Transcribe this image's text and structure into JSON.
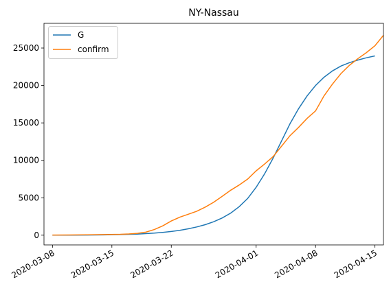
{
  "chart_data": {
    "type": "line",
    "title": "NY-Nassau",
    "xlabel": "",
    "ylabel": "",
    "x_ticks": [
      "2020-03-08",
      "2020-03-15",
      "2020-03-22",
      "2020-04-01",
      "2020-04-08",
      "2020-04-15"
    ],
    "y_ticks": [
      0,
      5000,
      10000,
      15000,
      20000,
      25000
    ],
    "xlim": [
      "2020-03-07",
      "2020-04-16"
    ],
    "ylim": [
      -1300,
      28300
    ],
    "grid": false,
    "legend": "top-left",
    "series": [
      {
        "name": "G",
        "color": "#1f77b4",
        "points": [
          [
            "2020-03-08",
            5
          ],
          [
            "2020-03-10",
            10
          ],
          [
            "2020-03-12",
            20
          ],
          [
            "2020-03-14",
            40
          ],
          [
            "2020-03-16",
            80
          ],
          [
            "2020-03-18",
            150
          ],
          [
            "2020-03-20",
            280
          ],
          [
            "2020-03-21",
            380
          ],
          [
            "2020-03-22",
            500
          ],
          [
            "2020-03-23",
            650
          ],
          [
            "2020-03-24",
            850
          ],
          [
            "2020-03-25",
            1100
          ],
          [
            "2020-03-26",
            1400
          ],
          [
            "2020-03-27",
            1800
          ],
          [
            "2020-03-28",
            2300
          ],
          [
            "2020-03-29",
            2950
          ],
          [
            "2020-03-30",
            3800
          ],
          [
            "2020-03-31",
            4900
          ],
          [
            "2020-04-01",
            6400
          ],
          [
            "2020-04-02",
            8200
          ],
          [
            "2020-04-03",
            10300
          ],
          [
            "2020-04-04",
            12600
          ],
          [
            "2020-04-05",
            14900
          ],
          [
            "2020-04-06",
            16900
          ],
          [
            "2020-04-07",
            18600
          ],
          [
            "2020-04-08",
            20000
          ],
          [
            "2020-04-09",
            21100
          ],
          [
            "2020-04-10",
            21950
          ],
          [
            "2020-04-11",
            22600
          ],
          [
            "2020-04-12",
            23050
          ],
          [
            "2020-04-13",
            23400
          ],
          [
            "2020-04-14",
            23700
          ],
          [
            "2020-04-15",
            23950
          ]
        ]
      },
      {
        "name": "confirm",
        "color": "#ff7f0e",
        "points": [
          [
            "2020-03-08",
            20
          ],
          [
            "2020-03-10",
            30
          ],
          [
            "2020-03-12",
            50
          ],
          [
            "2020-03-14",
            80
          ],
          [
            "2020-03-16",
            120
          ],
          [
            "2020-03-17",
            170
          ],
          [
            "2020-03-18",
            250
          ],
          [
            "2020-03-19",
            400
          ],
          [
            "2020-03-20",
            750
          ],
          [
            "2020-03-21",
            1250
          ],
          [
            "2020-03-22",
            1900
          ],
          [
            "2020-03-23",
            2400
          ],
          [
            "2020-03-24",
            2800
          ],
          [
            "2020-03-25",
            3200
          ],
          [
            "2020-03-26",
            3750
          ],
          [
            "2020-03-27",
            4400
          ],
          [
            "2020-03-28",
            5200
          ],
          [
            "2020-03-29",
            6000
          ],
          [
            "2020-03-30",
            6700
          ],
          [
            "2020-03-31",
            7500
          ],
          [
            "2020-04-01",
            8600
          ],
          [
            "2020-04-02",
            9500
          ],
          [
            "2020-04-03",
            10500
          ],
          [
            "2020-04-04",
            11900
          ],
          [
            "2020-04-05",
            13300
          ],
          [
            "2020-04-06",
            14400
          ],
          [
            "2020-04-07",
            15600
          ],
          [
            "2020-04-08",
            16600
          ],
          [
            "2020-04-09",
            18600
          ],
          [
            "2020-04-10",
            20200
          ],
          [
            "2020-04-11",
            21600
          ],
          [
            "2020-04-12",
            22700
          ],
          [
            "2020-04-13",
            23600
          ],
          [
            "2020-04-14",
            24400
          ],
          [
            "2020-04-15",
            25300
          ],
          [
            "2020-04-16",
            26700
          ]
        ]
      }
    ]
  }
}
